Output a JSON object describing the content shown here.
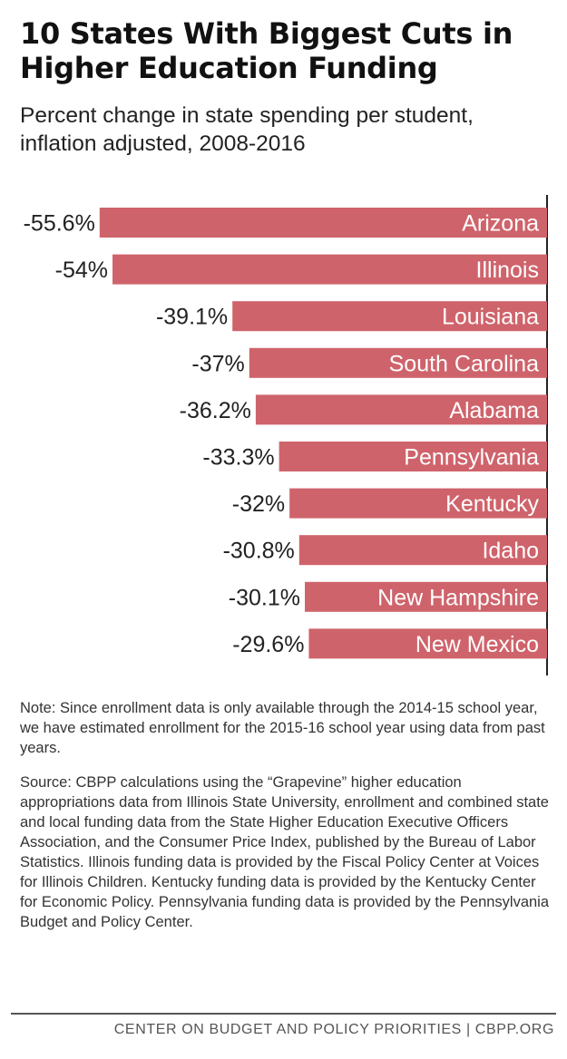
{
  "header": {
    "title": "10 States With Biggest Cuts in Higher Education Funding",
    "subtitle": "Percent change in state spending per student, inflation adjusted, 2008-2016"
  },
  "chart_data": {
    "type": "bar",
    "orientation": "horizontal",
    "title": "10 States With Biggest Cuts in Higher Education Funding",
    "subtitle": "Percent change in state spending per student, inflation adjusted, 2008-2016",
    "categories": [
      "Arizona",
      "Illinois",
      "Louisiana",
      "South Carolina",
      "Alabama",
      "Pennsylvania",
      "Kentucky",
      "Idaho",
      "New Hampshire",
      "New Mexico"
    ],
    "values": [
      -55.6,
      -54,
      -39.1,
      -37,
      -36.2,
      -33.3,
      -32,
      -30.8,
      -30.1,
      -29.6
    ],
    "value_labels": [
      "-55.6%",
      "-54%",
      "-39.1%",
      "-37%",
      "-36.2%",
      "-33.3%",
      "-32%",
      "-30.8%",
      "-30.1%",
      "-29.6%"
    ],
    "xlim": [
      -60,
      0
    ],
    "bar_color": "#cf636b",
    "grid": false,
    "legend": "none"
  },
  "notes": {
    "note": "Note: Since enrollment data is only available through the 2014-15 school year, we have estimated enrollment for the 2015-16 school year using data from past years.",
    "source": "Source: CBPP calculations using the “Grapevine” higher education appropriations data from Illinois State University, enrollment and combined state and local funding data from the State Higher Education Executive Officers Association, and the Consumer Price Index, published by the Bureau of Labor Statistics. Illinois funding data is provided by the Fiscal Policy Center at Voices for Illinois Children. Kentucky funding data is provided by the Kentucky Center for Economic Policy. Pennsylvania funding data is provided by the Pennsylvania Budget and Policy Center."
  },
  "footer": {
    "credit": "CENTER ON BUDGET AND POLICY PRIORITIES | CBPP.ORG"
  }
}
